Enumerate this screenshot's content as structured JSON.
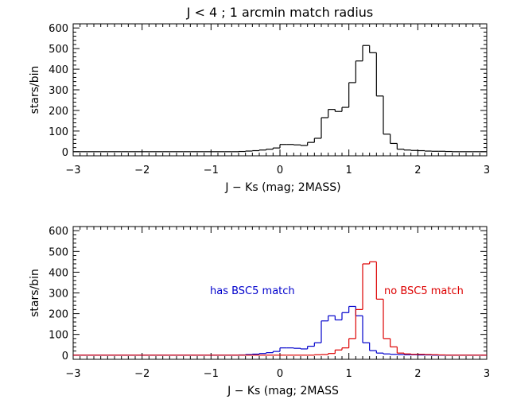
{
  "chart_data": [
    {
      "type": "histogram",
      "title": "J < 4 ; 1 arcmin match radius",
      "xlabel": "J − Ks (mag; 2MASS)",
      "ylabel": "stars/bin",
      "xlim": [
        -3,
        3
      ],
      "ylim": [
        -20,
        620
      ],
      "xticks": [
        -3,
        -2,
        -1,
        0,
        1,
        2,
        3
      ],
      "yticks": [
        0,
        100,
        200,
        300,
        400,
        500,
        600
      ],
      "bin_width": 0.1,
      "series": [
        {
          "color": "#000000",
          "bin_starts": [
            -3.0,
            -2.9,
            -2.8,
            -2.7,
            -2.6,
            -2.5,
            -2.4,
            -2.3,
            -2.2,
            -2.1,
            -2.0,
            -1.9,
            -1.8,
            -1.7,
            -1.6,
            -1.5,
            -1.4,
            -1.3,
            -1.2,
            -1.1,
            -1.0,
            -0.9,
            -0.8,
            -0.7,
            -0.6,
            -0.5,
            -0.4,
            -0.3,
            -0.2,
            -0.1,
            0.0,
            0.1,
            0.2,
            0.3,
            0.4,
            0.5,
            0.6,
            0.7,
            0.8,
            0.9,
            1.0,
            1.1,
            1.2,
            1.3,
            1.4,
            1.5,
            1.6,
            1.7,
            1.8,
            1.9,
            2.0,
            2.1,
            2.2,
            2.3,
            2.4,
            2.5,
            2.6,
            2.7,
            2.8,
            2.9
          ],
          "values": [
            0,
            0,
            0,
            0,
            0,
            0,
            0,
            0,
            0,
            0,
            0,
            0,
            0,
            0,
            0,
            0,
            0,
            0,
            0,
            0,
            0,
            0,
            0,
            0,
            1,
            3,
            5,
            8,
            12,
            18,
            35,
            35,
            33,
            30,
            45,
            65,
            165,
            205,
            195,
            215,
            335,
            440,
            515,
            480,
            270,
            85,
            40,
            12,
            8,
            6,
            5,
            3,
            2,
            2,
            1,
            0,
            0,
            0,
            0,
            0
          ]
        }
      ]
    },
    {
      "type": "histogram",
      "title": "",
      "xlabel": "J − Ks (mag; 2MASS",
      "ylabel": "stars/bin",
      "xlim": [
        -3,
        3
      ],
      "ylim": [
        -20,
        620
      ],
      "xticks": [
        -3,
        -2,
        -1,
        0,
        1,
        2,
        3
      ],
      "yticks": [
        0,
        100,
        200,
        300,
        400,
        500,
        600
      ],
      "bin_width": 0.1,
      "series": [
        {
          "name": "has BSC5 match",
          "color": "#0000cc",
          "bin_starts": [
            -3.0,
            -2.9,
            -2.8,
            -2.7,
            -2.6,
            -2.5,
            -2.4,
            -2.3,
            -2.2,
            -2.1,
            -2.0,
            -1.9,
            -1.8,
            -1.7,
            -1.6,
            -1.5,
            -1.4,
            -1.3,
            -1.2,
            -1.1,
            -1.0,
            -0.9,
            -0.8,
            -0.7,
            -0.6,
            -0.5,
            -0.4,
            -0.3,
            -0.2,
            -0.1,
            0.0,
            0.1,
            0.2,
            0.3,
            0.4,
            0.5,
            0.6,
            0.7,
            0.8,
            0.9,
            1.0,
            1.1,
            1.2,
            1.3,
            1.4,
            1.5,
            1.6,
            1.7,
            1.8,
            1.9,
            2.0,
            2.1,
            2.2,
            2.3,
            2.4,
            2.5,
            2.6,
            2.7,
            2.8,
            2.9
          ],
          "values": [
            0,
            0,
            0,
            0,
            0,
            0,
            0,
            0,
            0,
            0,
            0,
            0,
            0,
            0,
            0,
            0,
            0,
            0,
            0,
            0,
            0,
            0,
            0,
            0,
            1,
            3,
            5,
            8,
            12,
            18,
            35,
            35,
            33,
            30,
            43,
            60,
            165,
            190,
            170,
            205,
            235,
            190,
            60,
            22,
            10,
            6,
            4,
            3,
            2,
            2,
            1,
            1,
            0,
            0,
            0,
            0,
            0,
            0,
            0,
            0
          ]
        },
        {
          "name": "no BSC5 match",
          "color": "#dd0000",
          "bin_starts": [
            -3.0,
            -2.9,
            -2.8,
            -2.7,
            -2.6,
            -2.5,
            -2.4,
            -2.3,
            -2.2,
            -2.1,
            -2.0,
            -1.9,
            -1.8,
            -1.7,
            -1.6,
            -1.5,
            -1.4,
            -1.3,
            -1.2,
            -1.1,
            -1.0,
            -0.9,
            -0.8,
            -0.7,
            -0.6,
            -0.5,
            -0.4,
            -0.3,
            -0.2,
            -0.1,
            0.0,
            0.1,
            0.2,
            0.3,
            0.4,
            0.5,
            0.6,
            0.7,
            0.8,
            0.9,
            1.0,
            1.1,
            1.2,
            1.3,
            1.4,
            1.5,
            1.6,
            1.7,
            1.8,
            1.9,
            2.0,
            2.1,
            2.2,
            2.3,
            2.4,
            2.5,
            2.6,
            2.7,
            2.8,
            2.9
          ],
          "values": [
            0,
            0,
            0,
            0,
            0,
            0,
            0,
            0,
            0,
            0,
            0,
            0,
            0,
            0,
            0,
            0,
            0,
            0,
            0,
            0,
            0,
            0,
            0,
            0,
            0,
            0,
            0,
            0,
            0,
            0,
            0,
            0,
            0,
            0,
            0,
            2,
            3,
            8,
            25,
            35,
            80,
            220,
            440,
            450,
            270,
            80,
            40,
            10,
            6,
            4,
            4,
            3,
            2,
            1,
            0,
            0,
            0,
            0,
            0,
            0
          ]
        }
      ],
      "annotations": [
        {
          "text": "has BSC5 match",
          "color": "#0000cc"
        },
        {
          "text": "no BSC5 match",
          "color": "#dd0000"
        }
      ]
    }
  ]
}
